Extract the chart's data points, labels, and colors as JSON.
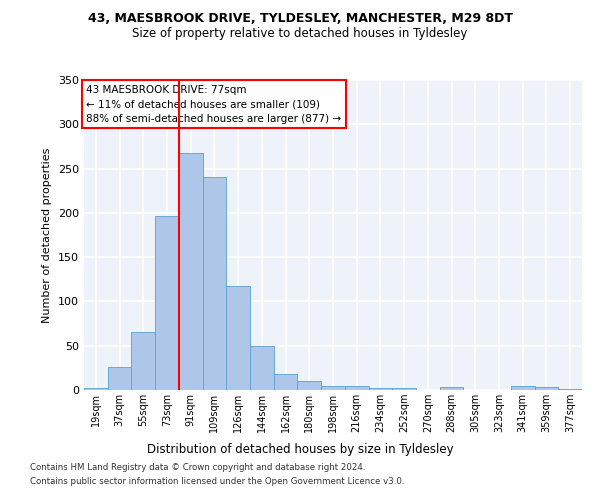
{
  "title1": "43, MAESBROOK DRIVE, TYLDESLEY, MANCHESTER, M29 8DT",
  "title2": "Size of property relative to detached houses in Tyldesley",
  "xlabel": "Distribution of detached houses by size in Tyldesley",
  "ylabel": "Number of detached properties",
  "footnote1": "Contains HM Land Registry data © Crown copyright and database right 2024.",
  "footnote2": "Contains public sector information licensed under the Open Government Licence v3.0.",
  "bin_labels": [
    "19sqm",
    "37sqm",
    "55sqm",
    "73sqm",
    "91sqm",
    "109sqm",
    "126sqm",
    "144sqm",
    "162sqm",
    "180sqm",
    "198sqm",
    "216sqm",
    "234sqm",
    "252sqm",
    "270sqm",
    "288sqm",
    "305sqm",
    "323sqm",
    "341sqm",
    "359sqm",
    "377sqm"
  ],
  "bar_values": [
    2,
    26,
    65,
    197,
    268,
    240,
    117,
    50,
    18,
    10,
    5,
    5,
    2,
    2,
    0,
    3,
    0,
    0,
    4,
    3,
    1
  ],
  "bar_color": "#aec6e8",
  "bar_edge_color": "#5a9fd4",
  "vline_color": "red",
  "vline_x_index": 3.5,
  "annotation_text": "43 MAESBROOK DRIVE: 77sqm\n← 11% of detached houses are smaller (109)\n88% of semi-detached houses are larger (877) →",
  "annotation_box_color": "white",
  "annotation_box_edge": "red",
  "ylim": [
    0,
    350
  ],
  "yticks": [
    0,
    50,
    100,
    150,
    200,
    250,
    300,
    350
  ],
  "background_color": "#eef2f9",
  "grid_color": "white",
  "fig_bg": "white"
}
